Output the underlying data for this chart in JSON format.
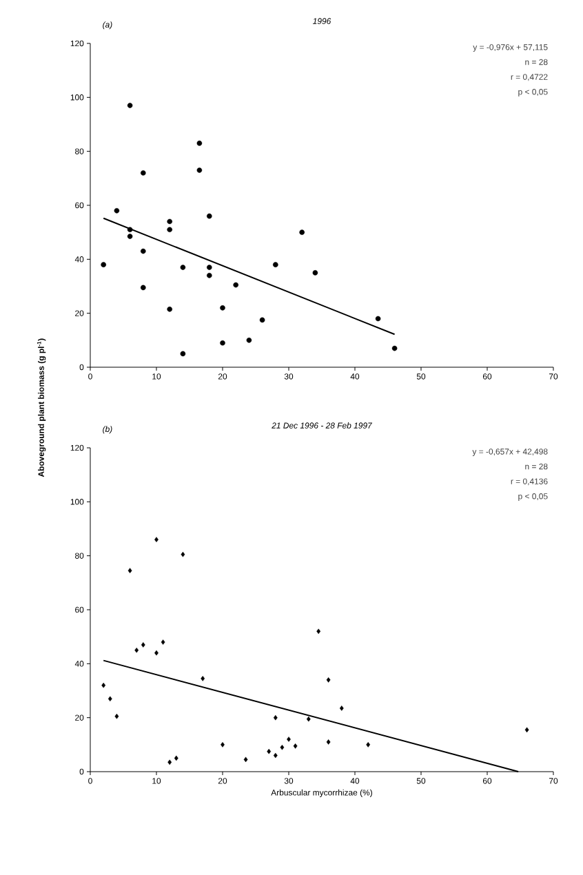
{
  "chart_data": [
    {
      "type": "scatter",
      "title": "1996",
      "ylabel": "Aboveground plant biomass (g pl$^{-1}$)",
      "annotations": [
        "(a)",
        "y = -0,976x + 57,115",
        "n = 28",
        "r = 0,4722",
        "p < 0,05"
      ],
      "xlim": [
        0,
        70
      ],
      "xticks": [
        0,
        10,
        20,
        30,
        40,
        50,
        60,
        70
      ],
      "ylim": [
        0,
        120
      ],
      "yticks": [
        0,
        20,
        40,
        60,
        80,
        100,
        120
      ],
      "series": [
        {
          "color": "#000000",
          "marker": "circle",
          "x": [
            2,
            4,
            6,
            6,
            6,
            8,
            8,
            8,
            12,
            12,
            12,
            14,
            14,
            16.5,
            16.5,
            18,
            18,
            18,
            22,
            20,
            20,
            24,
            26,
            28,
            32,
            34,
            43.5,
            46
          ],
          "values": [
            38,
            58,
            97,
            51,
            48.5,
            72,
            43,
            29.5,
            54,
            51,
            21.5,
            37,
            5,
            83,
            73,
            56,
            37,
            34,
            30.5,
            22,
            9,
            10,
            17.5,
            38,
            50,
            35,
            18,
            7
          ]
        },
        {
          "type": "line",
          "marker": "none",
          "color": "#000000",
          "x": [
            2,
            46
          ],
          "values": [
            55.2,
            12.2
          ]
        }
      ]
    },
    {
      "type": "scatter",
      "title": "21 Dec 1996 - 28 Feb 1997",
      "xlabel": "Arbuscular mycorrhizae (%)",
      "annotations": [
        "(b)",
        "y = -0,657x + 42,498",
        "n = 28",
        "r = 0,4136",
        "p < 0,05"
      ],
      "xlim": [
        0,
        70
      ],
      "xticks": [
        0,
        10,
        20,
        30,
        40,
        50,
        60,
        70
      ],
      "ylim": [
        0,
        120
      ],
      "yticks": [
        0,
        20,
        40,
        60,
        80,
        100,
        120
      ],
      "series": [
        {
          "color": "#000000",
          "marker": "diamond",
          "x": [
            2,
            3,
            4,
            6,
            7,
            8,
            10,
            10,
            11,
            12,
            13,
            14,
            17,
            20,
            23.5,
            27,
            28,
            28,
            29,
            30,
            31,
            33,
            34.5,
            36,
            36,
            38,
            42,
            66
          ],
          "values": [
            32,
            27,
            20.5,
            74.5,
            45,
            47,
            44,
            86,
            48,
            3.5,
            5,
            80.5,
            34.5,
            10,
            4.5,
            7.5,
            20,
            6,
            9,
            12,
            9.5,
            19.5,
            52,
            34,
            11,
            23.5,
            10,
            15.5
          ]
        },
        {
          "type": "line",
          "marker": "none",
          "color": "#000000",
          "x": [
            2,
            64.7
          ],
          "values": [
            41.2,
            0
          ]
        }
      ]
    }
  ]
}
